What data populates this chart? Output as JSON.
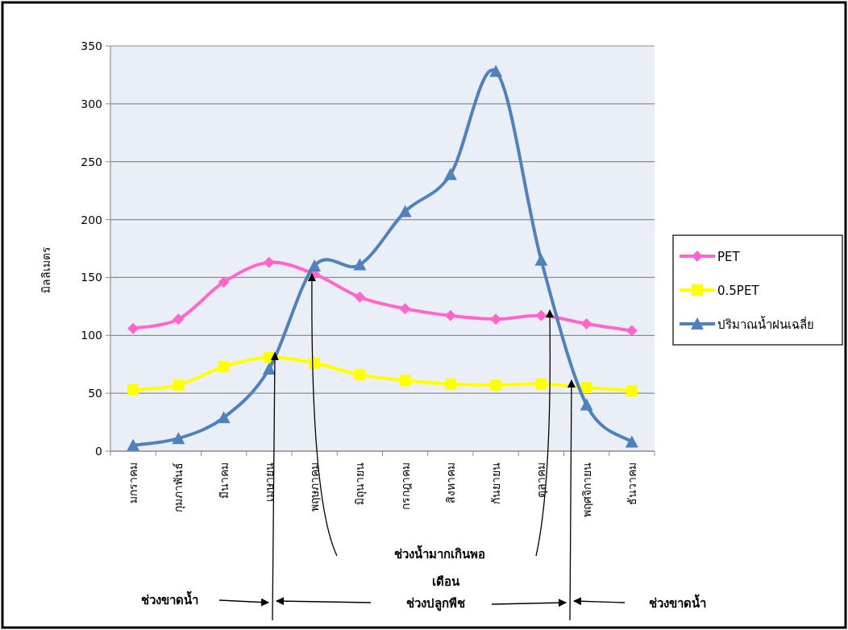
{
  "chart_data": {
    "type": "line",
    "xlabel": "เดือน",
    "ylabel": "มิลลิเมตร",
    "categories": [
      "มกราคม",
      "กุมภาพันธ์",
      "มีนาคม",
      "เมษายน",
      "พฤษภาคม",
      "มิถุนายน",
      "กรกฎาคม",
      "สิงหาคม",
      "กันยายน",
      "ตุลาคม",
      "พฤศจิกายน",
      "ธันวาคม"
    ],
    "series": [
      {
        "name": "PET",
        "color": "#ff66cc",
        "marker": "diamond",
        "values": [
          106,
          114,
          146,
          163,
          153,
          133,
          123,
          117,
          114,
          117,
          110,
          104
        ]
      },
      {
        "name": "0.5PET",
        "color": "#ffff00",
        "marker": "square",
        "values": [
          53,
          57,
          73,
          81,
          76,
          66,
          61,
          58,
          57,
          58,
          55,
          52
        ]
      },
      {
        "name": "ปริมาณน้ำฝนเฉลี่ย",
        "color": "#4f81bd",
        "marker": "triangle",
        "values": [
          5,
          11,
          29,
          71,
          160,
          161,
          207,
          239,
          328,
          165,
          40,
          8
        ]
      }
    ],
    "ylim": [
      0,
      350
    ],
    "yticks": [
      0,
      50,
      100,
      150,
      200,
      250,
      300,
      350
    ],
    "grid": "y",
    "legend": "right",
    "annotations": [
      "ช่วงน้ำมากเกินพอ",
      "ช่วงขาดน้ำ",
      "ช่วงปลูกพืช",
      "ช่วงขาดน้ำ"
    ]
  }
}
